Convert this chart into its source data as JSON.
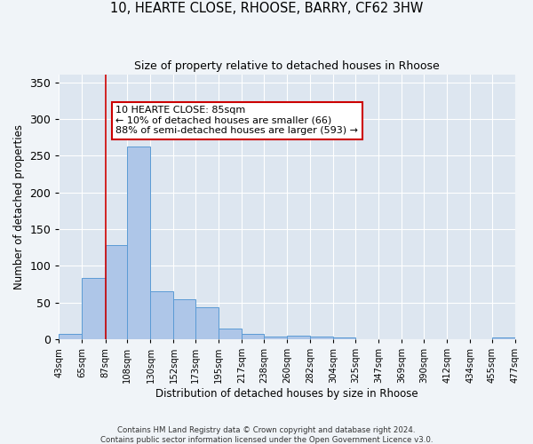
{
  "title_line1": "10, HEARTE CLOSE, RHOOSE, BARRY, CF62 3HW",
  "title_line2": "Size of property relative to detached houses in Rhoose",
  "xlabel": "Distribution of detached houses by size in Rhoose",
  "ylabel": "Number of detached properties",
  "bar_edges": [
    43,
    65,
    87,
    108,
    130,
    152,
    173,
    195,
    217,
    238,
    260,
    282,
    304,
    325,
    347,
    369,
    390,
    412,
    434,
    455,
    477
  ],
  "bar_heights": [
    7,
    83,
    128,
    263,
    65,
    55,
    44,
    14,
    7,
    4,
    5,
    4,
    3,
    0,
    0,
    0,
    0,
    0,
    0,
    3
  ],
  "bar_color": "#aec6e8",
  "bar_edge_color": "#5b9bd5",
  "property_line_x": 87,
  "ylim": [
    0,
    360
  ],
  "yticks": [
    0,
    50,
    100,
    150,
    200,
    250,
    300,
    350
  ],
  "annotation_text": "10 HEARTE CLOSE: 85sqm\n← 10% of detached houses are smaller (66)\n88% of semi-detached houses are larger (593) →",
  "annotation_box_color": "#ffffff",
  "annotation_border_color": "#cc0000",
  "fig_background_color": "#f0f4f8",
  "ax_background_color": "#dde6f0",
  "grid_color": "#ffffff",
  "footer_text": "Contains HM Land Registry data © Crown copyright and database right 2024.\nContains public sector information licensed under the Open Government Licence v3.0.",
  "tick_labels": [
    "43sqm",
    "65sqm",
    "87sqm",
    "108sqm",
    "130sqm",
    "152sqm",
    "173sqm",
    "195sqm",
    "217sqm",
    "238sqm",
    "260sqm",
    "282sqm",
    "304sqm",
    "325sqm",
    "347sqm",
    "369sqm",
    "390sqm",
    "412sqm",
    "434sqm",
    "455sqm",
    "477sqm"
  ]
}
